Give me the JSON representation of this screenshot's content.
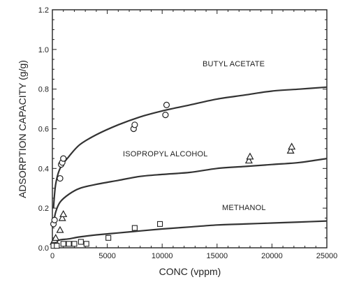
{
  "chart_data": {
    "type": "scatter",
    "xlabel": "CONC (vppm)",
    "ylabel": "ADSORPTION CAPACITY (g/g)",
    "xlim": [
      0,
      25000
    ],
    "ylim": [
      0,
      1.2
    ],
    "x_ticks": [
      "0",
      "5000",
      "10000",
      "15000",
      "20000",
      "25000"
    ],
    "y_ticks": [
      "0.0",
      "0.2",
      "0.4",
      "0.6",
      "0.8",
      "1.0",
      "1.2"
    ],
    "grid": false,
    "series": [
      {
        "name": "BUTYL ACETATE",
        "marker": "circle",
        "points": [
          [
            100,
            0.12
          ],
          [
            200,
            0.14
          ],
          [
            700,
            0.35
          ],
          [
            800,
            0.42
          ],
          [
            900,
            0.43
          ],
          [
            1000,
            0.45
          ],
          [
            7400,
            0.6
          ],
          [
            7500,
            0.62
          ],
          [
            10300,
            0.67
          ],
          [
            10400,
            0.72
          ]
        ],
        "fit_curve": [
          [
            100,
            0.2
          ],
          [
            300,
            0.32
          ],
          [
            700,
            0.4
          ],
          [
            1500,
            0.46
          ],
          [
            2500,
            0.52
          ],
          [
            4000,
            0.57
          ],
          [
            6000,
            0.62
          ],
          [
            8000,
            0.66
          ],
          [
            10000,
            0.69
          ],
          [
            12500,
            0.72
          ],
          [
            15000,
            0.75
          ],
          [
            17500,
            0.77
          ],
          [
            20000,
            0.79
          ],
          [
            22500,
            0.8
          ],
          [
            25000,
            0.81
          ]
        ]
      },
      {
        "name": "ISOPROPYL ALCOHOL",
        "marker": "triangle",
        "points": [
          [
            100,
            0.03
          ],
          [
            200,
            0.04
          ],
          [
            300,
            0.05
          ],
          [
            700,
            0.09
          ],
          [
            900,
            0.15
          ],
          [
            1000,
            0.17
          ],
          [
            17900,
            0.44
          ],
          [
            18000,
            0.46
          ],
          [
            21700,
            0.49
          ],
          [
            21800,
            0.51
          ]
        ],
        "fit_curve": [
          [
            100,
            0.12
          ],
          [
            300,
            0.18
          ],
          [
            700,
            0.23
          ],
          [
            1500,
            0.27
          ],
          [
            2500,
            0.3
          ],
          [
            4000,
            0.32
          ],
          [
            6000,
            0.34
          ],
          [
            8000,
            0.36
          ],
          [
            10000,
            0.37
          ],
          [
            12500,
            0.38
          ],
          [
            15000,
            0.4
          ],
          [
            17500,
            0.41
          ],
          [
            20000,
            0.42
          ],
          [
            22500,
            0.43
          ],
          [
            25000,
            0.45
          ]
        ]
      },
      {
        "name": "METHANOL",
        "marker": "square",
        "points": [
          [
            100,
            0.01
          ],
          [
            400,
            0.01
          ],
          [
            1000,
            0.02
          ],
          [
            1500,
            0.02
          ],
          [
            2000,
            0.02
          ],
          [
            2600,
            0.03
          ],
          [
            3100,
            0.02
          ],
          [
            5100,
            0.05
          ],
          [
            7500,
            0.1
          ],
          [
            9800,
            0.12
          ]
        ],
        "fit_curve": [
          [
            100,
            0.02
          ],
          [
            300,
            0.03
          ],
          [
            700,
            0.04
          ],
          [
            1500,
            0.045
          ],
          [
            2500,
            0.055
          ],
          [
            4000,
            0.065
          ],
          [
            6000,
            0.075
          ],
          [
            8000,
            0.085
          ],
          [
            10000,
            0.095
          ],
          [
            12500,
            0.105
          ],
          [
            15000,
            0.115
          ],
          [
            17500,
            0.12
          ],
          [
            20000,
            0.125
          ],
          [
            22500,
            0.13
          ],
          [
            25000,
            0.135
          ]
        ]
      }
    ]
  }
}
